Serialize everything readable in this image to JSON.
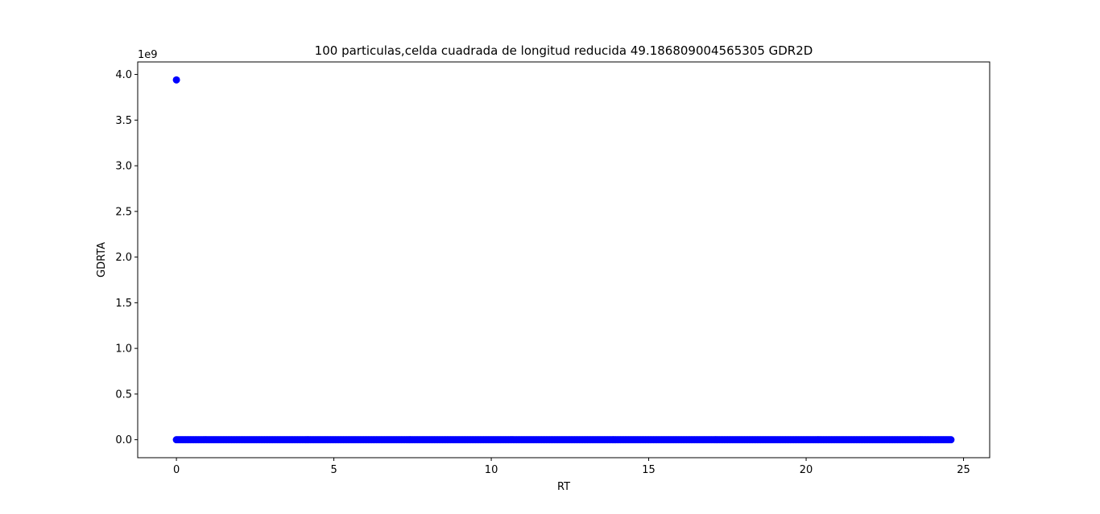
{
  "chart_data": {
    "type": "scatter",
    "title": "100 particulas,celda cuadrada de longitud reducida 49.186809004565305 GDR2D",
    "xlabel": "RT",
    "ylabel": "GDRTA",
    "y_offset_label": "1e9",
    "y_scale_factor": 1000000000,
    "xlim": [
      -1.23,
      25.83
    ],
    "ylim": [
      -0.197,
      4.137
    ],
    "xticks": [
      0,
      5,
      10,
      15,
      20,
      25
    ],
    "xtick_labels": [
      "0",
      "5",
      "10",
      "15",
      "20",
      "25"
    ],
    "yticks": [
      0.0,
      0.5,
      1.0,
      1.5,
      2.0,
      2.5,
      3.0,
      3.5,
      4.0
    ],
    "ytick_labels": [
      "0.0",
      "0.5",
      "1.0",
      "1.5",
      "2.0",
      "2.5",
      "3.0",
      "3.5",
      "4.0"
    ],
    "grid": false,
    "point_color": "#0000ff",
    "series": [
      {
        "outlier": {
          "x": 0.0,
          "y": 3.94
        },
        "baseline": {
          "x_start": 0.0,
          "x_end": 24.6,
          "step": 0.05,
          "y": 0.0
        }
      }
    ]
  }
}
